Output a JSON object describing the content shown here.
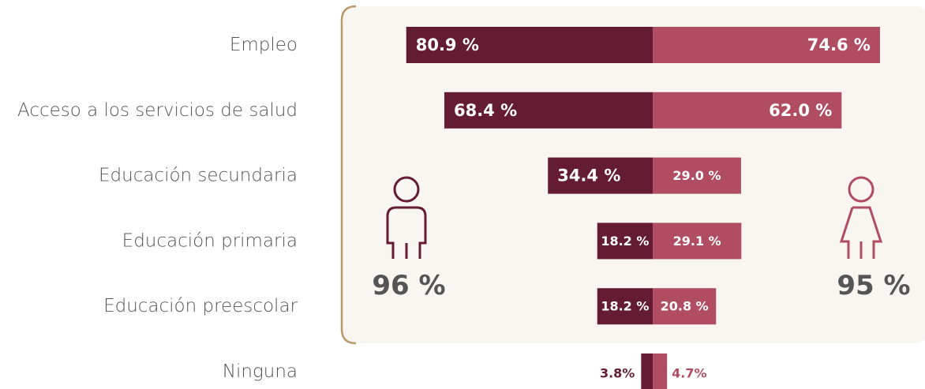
{
  "chart_data": {
    "type": "bar",
    "orientation": "diverging-horizontal",
    "categories": [
      "Empleo",
      "Acceso a los servicios de salud",
      "Educación secundaria",
      "Educación primaria",
      "Educación preescolar",
      "Ninguna"
    ],
    "series": [
      {
        "color": "#641c33",
        "values": [
          80.9,
          68.4,
          34.4,
          18.2,
          18.2,
          3.8
        ],
        "value_labels": [
          "80.9 %",
          "68.4 %",
          "34.4 %",
          "18.2 %",
          "18.2 %",
          "3.8%"
        ]
      },
      {
        "color": "#b14d62",
        "values": [
          74.6,
          62.0,
          29.0,
          29.1,
          20.8,
          4.7
        ],
        "value_labels": [
          "74.6 %",
          "62.0 %",
          "29.0 %",
          "29.1 %",
          "20.8 %",
          "4.7%"
        ]
      }
    ],
    "annotations": [
      "96 %",
      "95 %"
    ]
  }
}
